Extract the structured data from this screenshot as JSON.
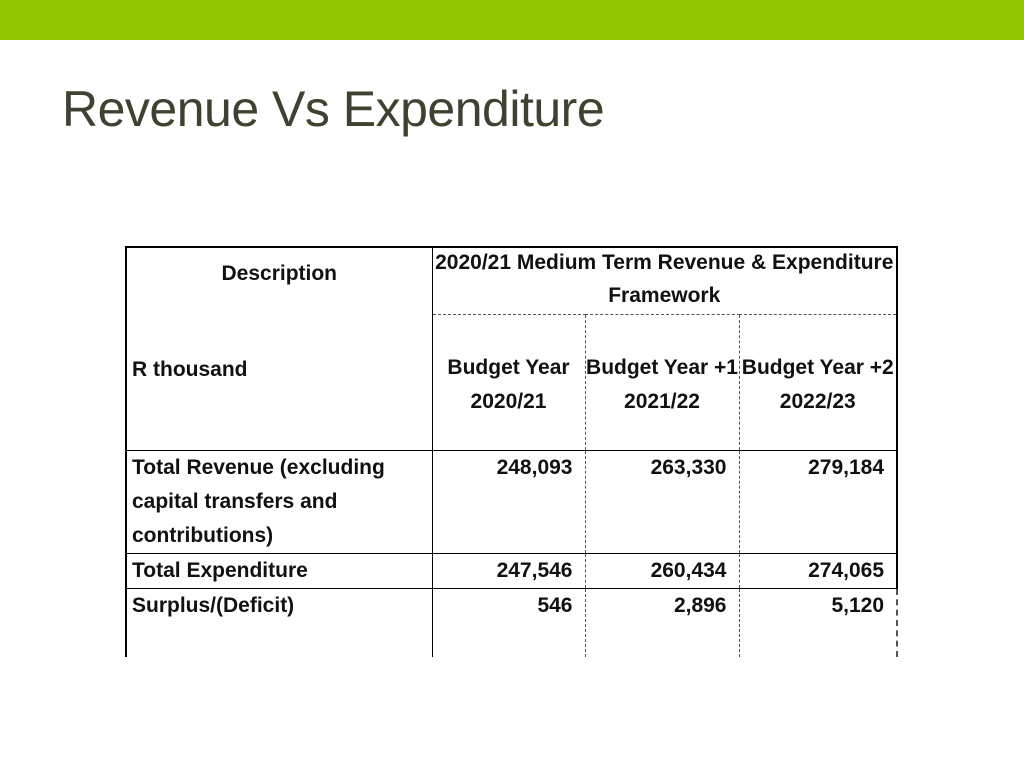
{
  "slide": {
    "title": "Revenue Vs Expenditure",
    "accent_color": "#92c400",
    "title_color": "#3f4230"
  },
  "table": {
    "description_header": "Description",
    "units_header": "R thousand",
    "group_header": "2020/21 Medium Term Revenue & Expenditure Framework",
    "columns": [
      "Budget Year 2020/21",
      "Budget Year +1 2021/22",
      "Budget Year +2 2022/23"
    ],
    "rows": [
      {
        "label": "Total Revenue (excluding capital transfers and contributions)",
        "values": [
          "248,093",
          "263,330",
          "279,184"
        ]
      },
      {
        "label": "Total Expenditure",
        "values": [
          "247,546",
          "260,434",
          "274,065"
        ]
      },
      {
        "label": "Surplus/(Deficit)",
        "values": [
          "546",
          "2,896",
          "5,120"
        ]
      }
    ]
  }
}
